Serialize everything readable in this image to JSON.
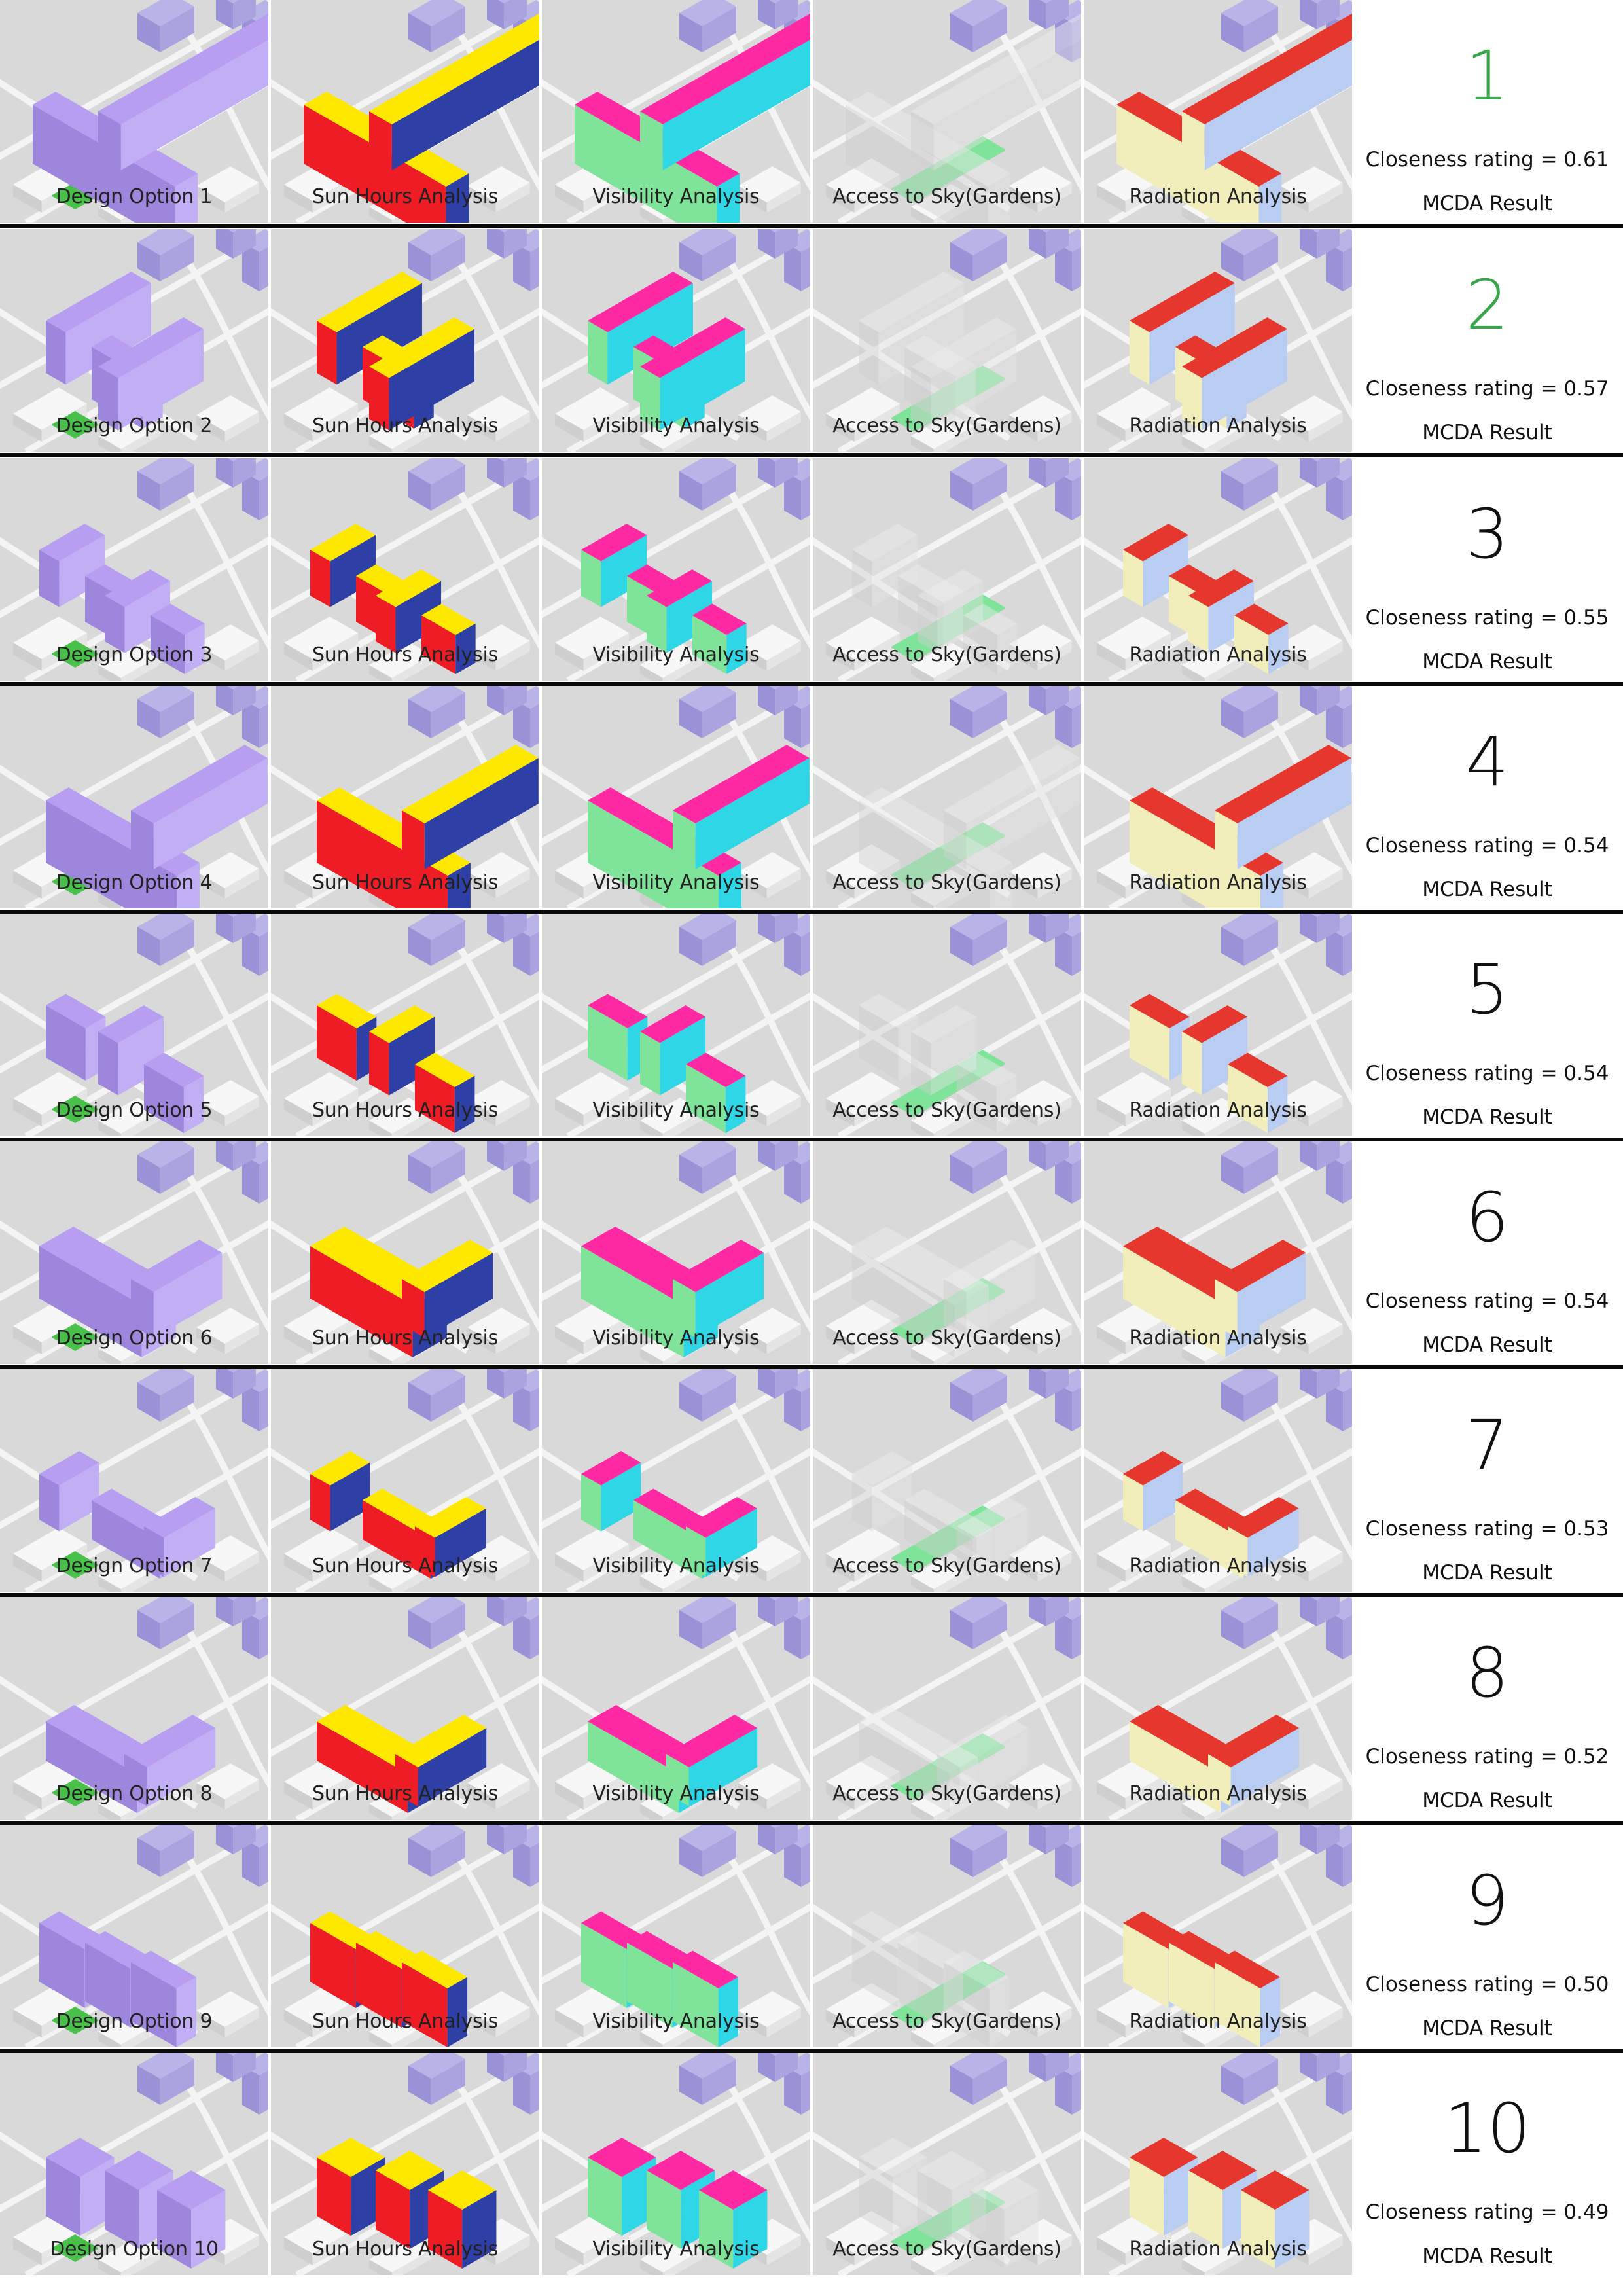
{
  "panel_headers": [
    "Sun Hours Analysis",
    "Visibility Analysis",
    "Access to Sky(Gardens)",
    "Radiation Analysis"
  ],
  "mcda_label": "MCDA Result",
  "colors": {
    "top_rank": "#3aa64b",
    "other_rank": "#111111",
    "massing": "#a48ee0",
    "context": "#b9b4e8",
    "sun_yellow": "#ffe800",
    "sun_red": "#ee1c24",
    "sun_blue": "#2e3fa6",
    "vis_pink": "#ff2aa3",
    "vis_green": "#7fe39a",
    "vis_cyan": "#2fd6e6",
    "rad_red": "#e6372e",
    "rad_blue": "#b9cdf2",
    "rad_cream": "#f2eebc",
    "garden_green": "#48c04a"
  },
  "options": [
    {
      "label": "Design Option 1",
      "rank": "1",
      "closeness": "Closeness rating = 0.61",
      "highlight": true
    },
    {
      "label": "Design Option 2",
      "rank": "2",
      "closeness": "Closeness rating = 0.57",
      "highlight": true
    },
    {
      "label": "Design Option 3",
      "rank": "3",
      "closeness": "Closeness rating = 0.55",
      "highlight": false
    },
    {
      "label": "Design Option 4",
      "rank": "4",
      "closeness": "Closeness rating = 0.54",
      "highlight": false
    },
    {
      "label": "Design Option 5",
      "rank": "5",
      "closeness": "Closeness rating = 0.54",
      "highlight": false
    },
    {
      "label": "Design Option 6",
      "rank": "6",
      "closeness": "Closeness rating = 0.54",
      "highlight": false
    },
    {
      "label": "Design Option 7",
      "rank": "7",
      "closeness": "Closeness rating = 0.53",
      "highlight": false
    },
    {
      "label": "Design Option 8",
      "rank": "8",
      "closeness": "Closeness rating = 0.52",
      "highlight": false
    },
    {
      "label": "Design Option 9",
      "rank": "9",
      "closeness": "Closeness rating = 0.50",
      "highlight": false
    },
    {
      "label": "Design Option 10",
      "rank": "10",
      "closeness": "Closeness rating = 0.49",
      "highlight": false
    }
  ]
}
